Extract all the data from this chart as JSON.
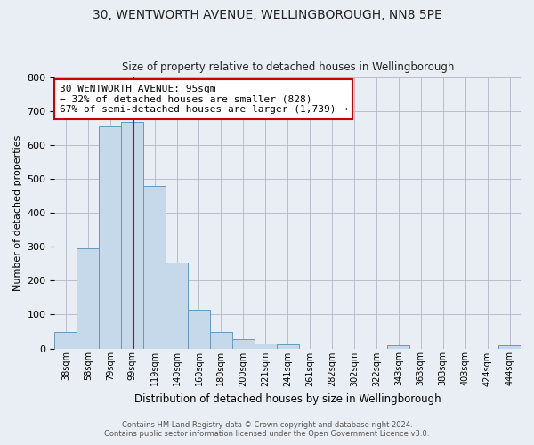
{
  "title": "30, WENTWORTH AVENUE, WELLINGBOROUGH, NN8 5PE",
  "subtitle": "Size of property relative to detached houses in Wellingborough",
  "xlabel": "Distribution of detached houses by size in Wellingborough",
  "ylabel": "Number of detached properties",
  "bin_labels": [
    "38sqm",
    "58sqm",
    "79sqm",
    "99sqm",
    "119sqm",
    "140sqm",
    "160sqm",
    "180sqm",
    "200sqm",
    "221sqm",
    "241sqm",
    "261sqm",
    "282sqm",
    "302sqm",
    "322sqm",
    "343sqm",
    "363sqm",
    "383sqm",
    "403sqm",
    "424sqm",
    "444sqm"
  ],
  "bar_heights": [
    50,
    295,
    655,
    670,
    480,
    255,
    115,
    50,
    28,
    15,
    13,
    0,
    0,
    0,
    0,
    8,
    0,
    0,
    0,
    0,
    8
  ],
  "bar_color": "#c6d9ea",
  "bar_edge_color": "#6699bb",
  "vline_x": 3.57,
  "vline_color": "#cc0000",
  "annotation_text": "30 WENTWORTH AVENUE: 95sqm\n← 32% of detached houses are smaller (828)\n67% of semi-detached houses are larger (1,739) →",
  "annotation_box_color": "#ffffff",
  "annotation_box_edge": "#cc0000",
  "ylim": [
    0,
    800
  ],
  "yticks": [
    0,
    100,
    200,
    300,
    400,
    500,
    600,
    700,
    800
  ],
  "footer_line1": "Contains HM Land Registry data © Crown copyright and database right 2024.",
  "footer_line2": "Contains public sector information licensed under the Open Government Licence v3.0.",
  "bg_color": "#e8eef4",
  "plot_bg_color": "#e8eef4"
}
